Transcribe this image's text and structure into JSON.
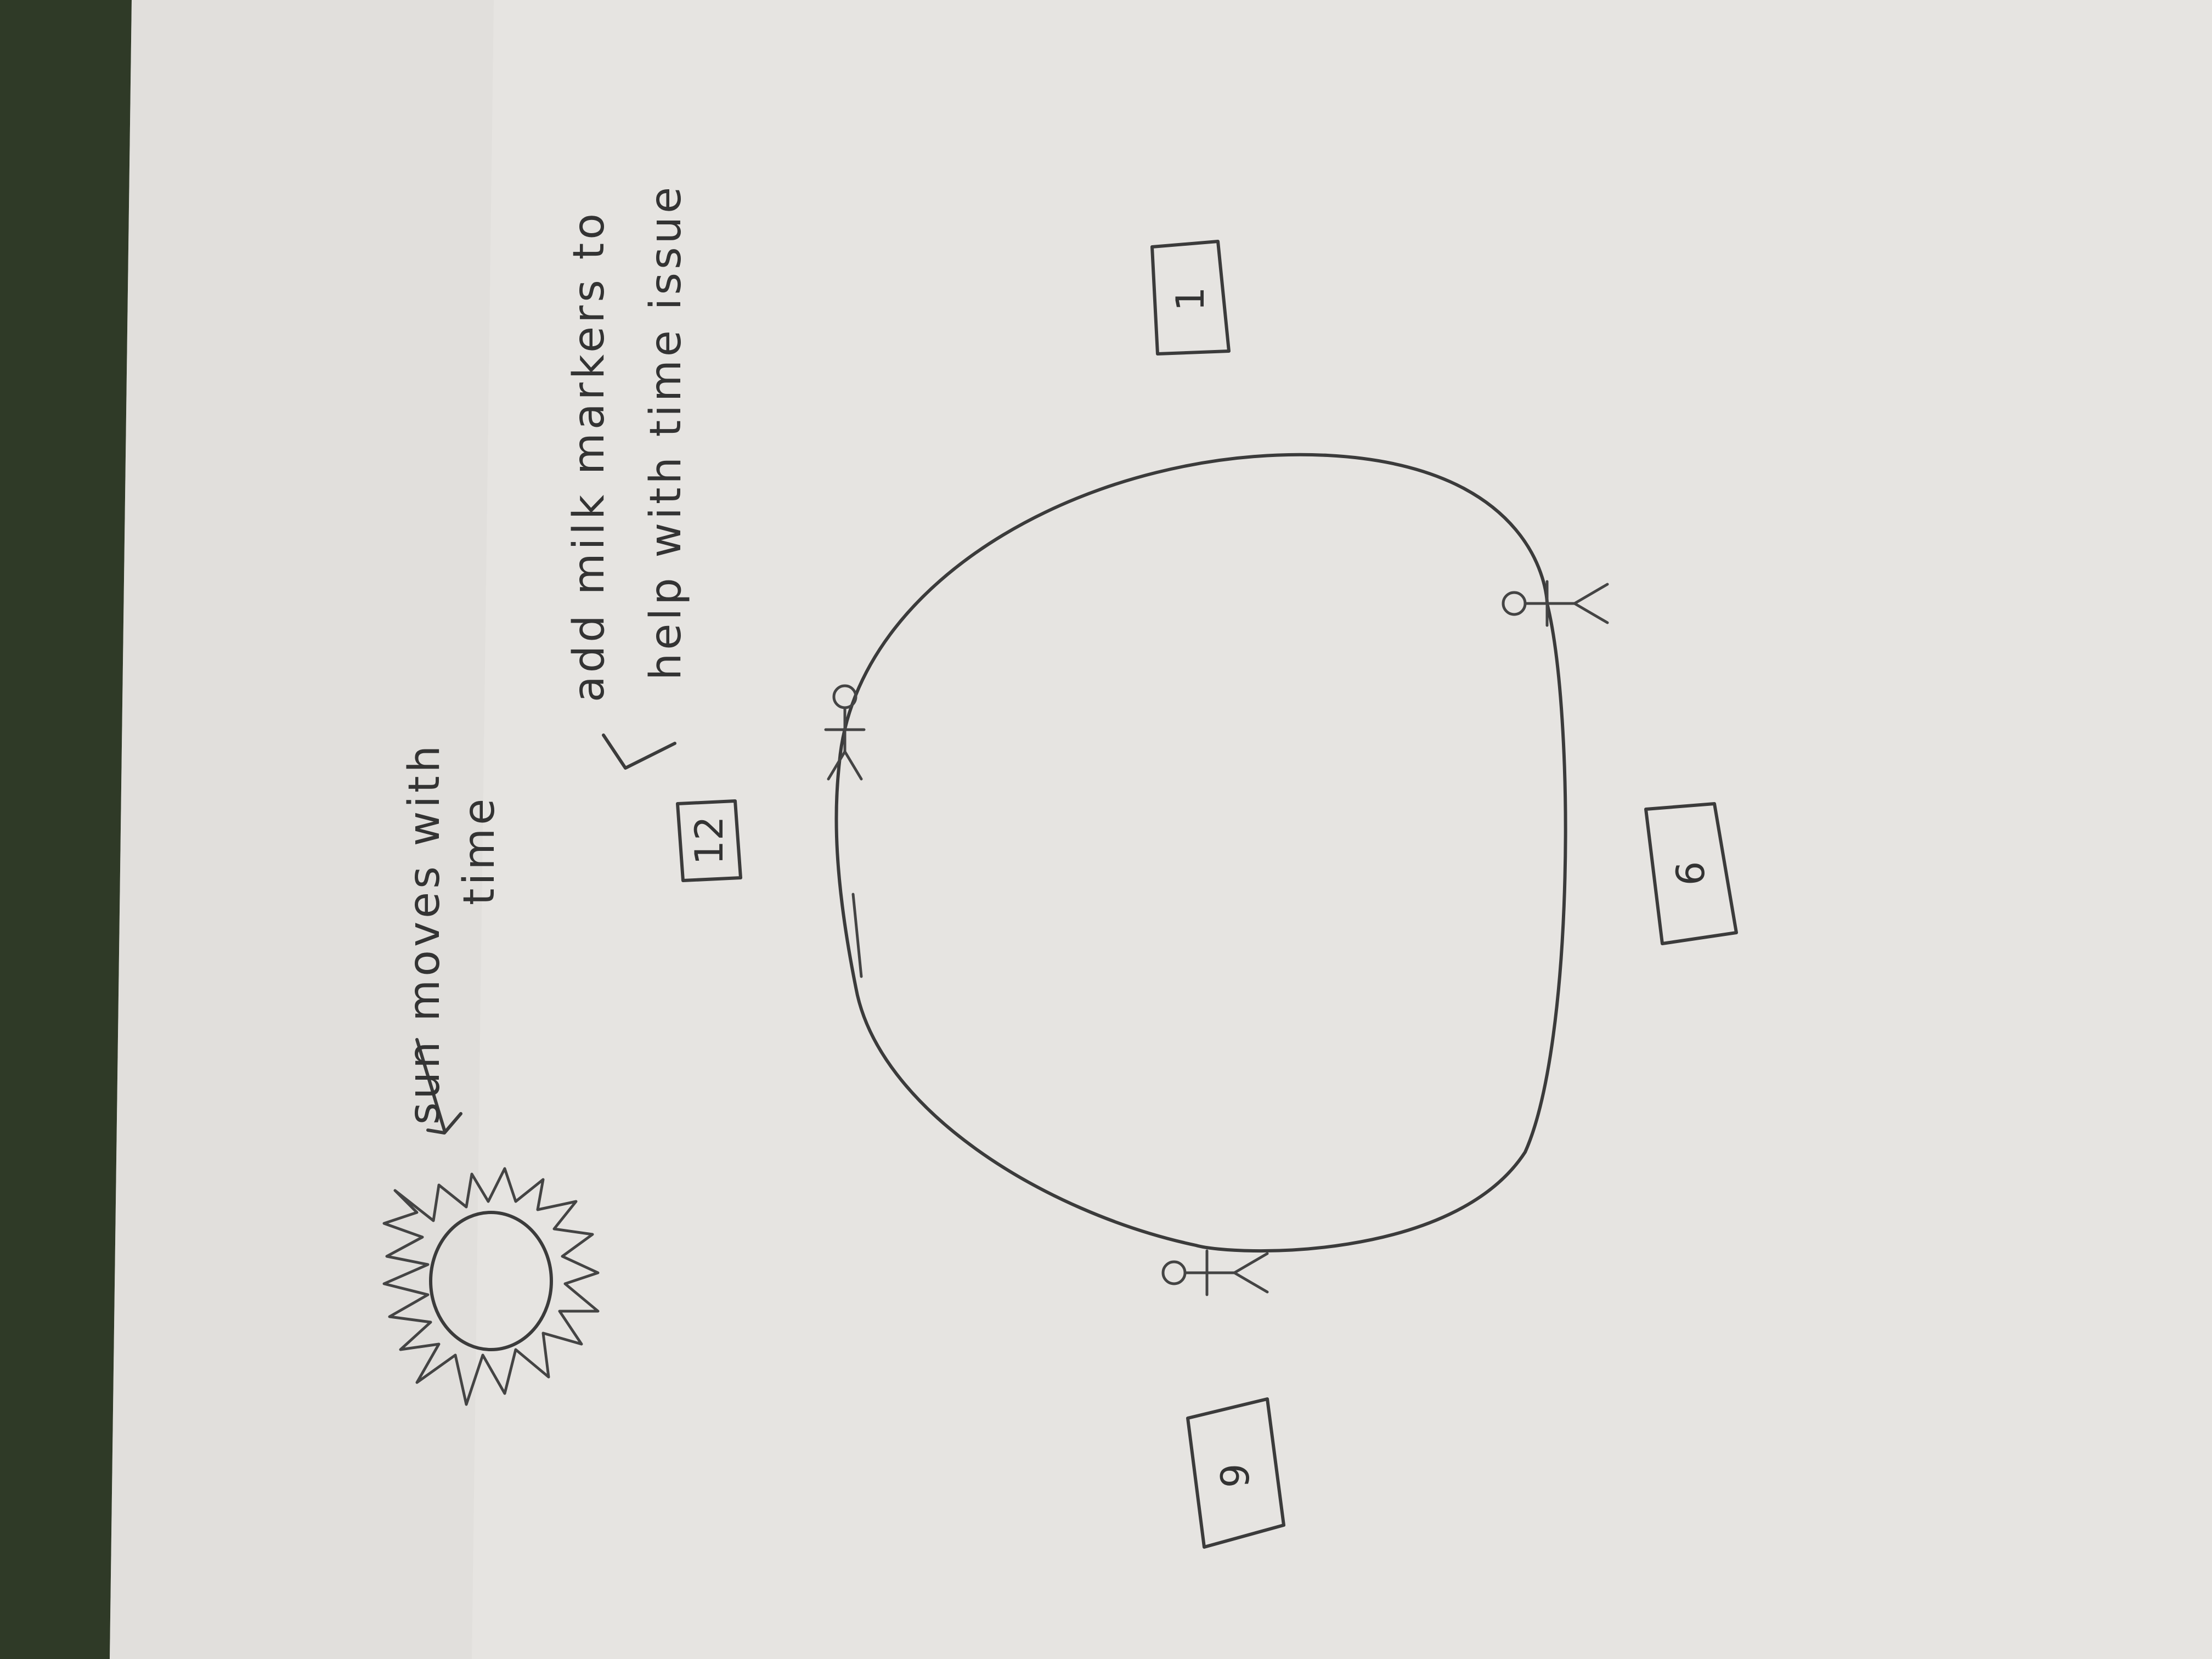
{
  "paper": {
    "background_color": "#2f3a27",
    "paper_color": "#e6e4e1"
  },
  "notes": {
    "sun_label_line1": "sun moves with",
    "sun_label_line2": "time",
    "milk_markers_line1": "add milk markers to",
    "milk_markers_line2": "help with time issue"
  },
  "boxes": {
    "noon": "12",
    "one": "1",
    "six": "6",
    "nine": "9"
  },
  "icons": {
    "sun": "sun-icon",
    "figure": "stick-figure-icon",
    "arrow": "arrow-icon"
  }
}
